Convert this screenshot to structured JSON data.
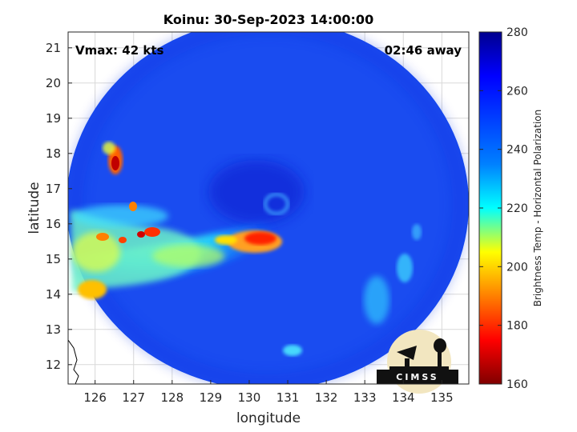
{
  "chart_data": {
    "type": "heatmap",
    "title": "Koinu: 30-Sep-2023 14:00:00",
    "xlabel": "longitude",
    "ylabel": "latitude",
    "xlim": [
      125.3,
      135.7
    ],
    "ylim": [
      11.45,
      21.45
    ],
    "xticks": [
      126,
      127,
      128,
      129,
      130,
      131,
      132,
      133,
      134,
      135
    ],
    "yticks": [
      12,
      13,
      14,
      15,
      16,
      17,
      18,
      19,
      20,
      21
    ],
    "annotations": {
      "vmax": "Vmax: 42 kts",
      "time_away": "02:46 away"
    },
    "grid": true,
    "colorbar": {
      "label": "Brightness Temp - Horizontal Polarization",
      "min": 160,
      "max": 280,
      "ticks": [
        160,
        180,
        200,
        220,
        240,
        260,
        280
      ],
      "colormap": "jet",
      "colors": [
        "#800000",
        "#ff0000",
        "#ffff00",
        "#00ffff",
        "#0000ff",
        "#00008f"
      ]
    },
    "swath": {
      "center_lon": 130.4,
      "center_lat": 16.6,
      "background_value": 262
    },
    "features": [
      {
        "name": "storm center",
        "lon": 130.6,
        "lat": 16.3,
        "value": 248
      },
      {
        "name": "western rainband",
        "lon": 126.3,
        "lat": 15.2,
        "value": 220
      },
      {
        "name": "convective core east",
        "lon": 130.6,
        "lat": 15.6,
        "value": 188
      },
      {
        "name": "cell north-west",
        "lon": 126.5,
        "lat": 17.8,
        "value": 188
      },
      {
        "name": "cell west coast",
        "lon": 125.7,
        "lat": 14.2,
        "value": 205
      },
      {
        "name": "cells central-west",
        "lon": 127.5,
        "lat": 15.8,
        "value": 195
      },
      {
        "name": "southeast band",
        "lon": 133.8,
        "lat": 14.0,
        "value": 238
      },
      {
        "name": "south cell",
        "lon": 131.2,
        "lat": 12.5,
        "value": 235
      }
    ]
  },
  "logo": {
    "text": "CIMSS"
  }
}
